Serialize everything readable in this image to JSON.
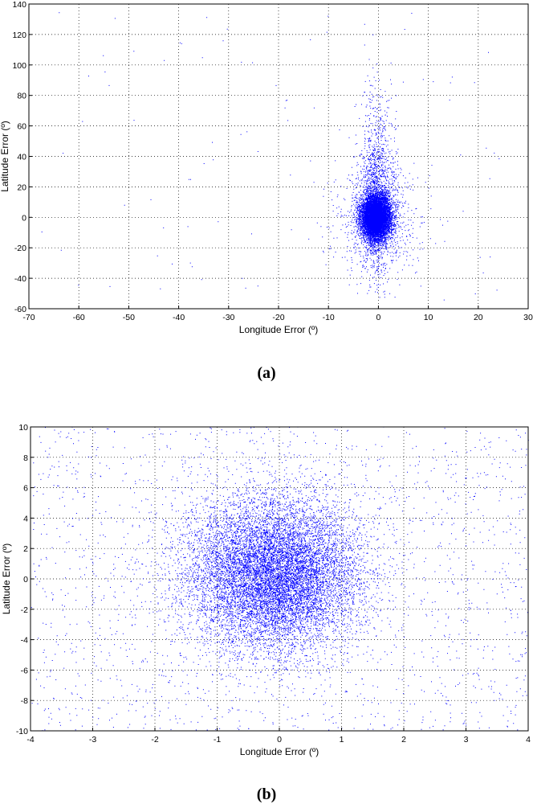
{
  "chart_data": [
    {
      "type": "scatter",
      "panel_label_open": "(",
      "panel_label_letter": "a",
      "panel_label_close": ")",
      "xlabel": "Longitude Error (º)",
      "ylabel": "Latitude Error (º)",
      "xlim": [
        -70,
        30
      ],
      "ylim": [
        -60,
        140
      ],
      "xticks": [
        -70,
        -60,
        -50,
        -40,
        -30,
        -20,
        -10,
        0,
        10,
        20,
        30
      ],
      "yticks": [
        -60,
        -40,
        -20,
        0,
        20,
        40,
        60,
        80,
        100,
        120,
        140
      ],
      "grid": true,
      "marker_color": "#0000ff",
      "distribution": {
        "x_center": -0.5,
        "y_center": 0,
        "core_x_sd": 1.4,
        "core_y_sd": 7,
        "vertical_tail_y_range": [
          -55,
          135
        ],
        "sparse_outliers_x_range": [
          -68,
          25
        ]
      }
    },
    {
      "type": "scatter",
      "panel_label_open": "(",
      "panel_label_letter": "b",
      "panel_label_close": ")",
      "xlabel": "Longitude Error (º)",
      "ylabel": "Latitude Error (º)",
      "xlim": [
        -4,
        4
      ],
      "ylim": [
        -10,
        10
      ],
      "xticks": [
        -4,
        -3,
        -2,
        -1,
        0,
        1,
        2,
        3,
        4
      ],
      "yticks": [
        -10,
        -8,
        -6,
        -4,
        -2,
        0,
        2,
        4,
        6,
        8,
        10
      ],
      "grid": true,
      "marker_color": "#0000ff",
      "distribution": {
        "x_center": -0.1,
        "y_center": 0.3,
        "core_x_sd": 0.7,
        "core_y_sd": 2.5
      }
    }
  ]
}
